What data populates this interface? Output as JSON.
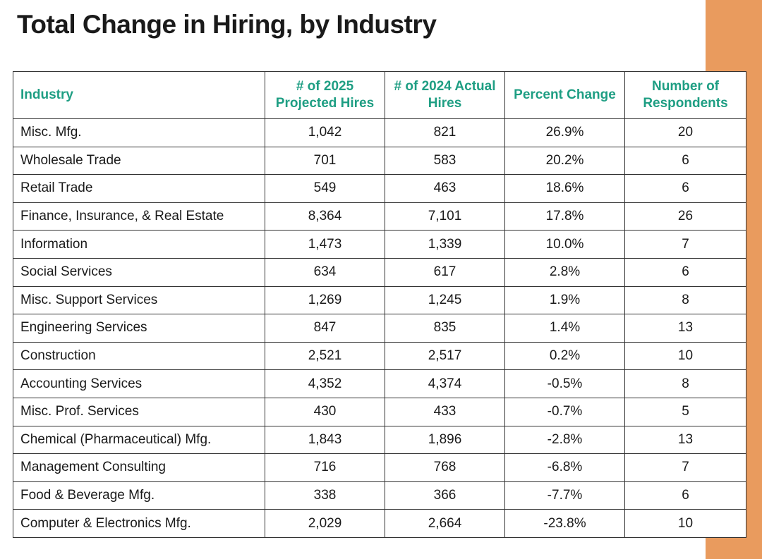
{
  "colors": {
    "accent": "#E99B5E",
    "header_text": "#1E9E83"
  },
  "page": {
    "title": "Total Change in Hiring, by Industry"
  },
  "chart_data": {
    "type": "table",
    "title": "Total Change in Hiring, by Industry",
    "columns": [
      "Industry",
      "# of 2025 Projected Hires",
      "# of 2024 Actual Hires",
      "Percent Change",
      "Number of Respondents"
    ],
    "rows": [
      [
        "Misc. Mfg.",
        "1,042",
        "821",
        "26.9%",
        "20"
      ],
      [
        "Wholesale Trade",
        "701",
        "583",
        "20.2%",
        "6"
      ],
      [
        "Retail Trade",
        "549",
        "463",
        "18.6%",
        "6"
      ],
      [
        "Finance, Insurance, & Real Estate",
        "8,364",
        "7,101",
        "17.8%",
        "26"
      ],
      [
        "Information",
        "1,473",
        "1,339",
        "10.0%",
        "7"
      ],
      [
        "Social Services",
        "634",
        "617",
        "2.8%",
        "6"
      ],
      [
        "Misc. Support Services",
        "1,269",
        "1,245",
        "1.9%",
        "8"
      ],
      [
        "Engineering Services",
        "847",
        "835",
        "1.4%",
        "13"
      ],
      [
        "Construction",
        "2,521",
        "2,517",
        "0.2%",
        "10"
      ],
      [
        "Accounting Services",
        "4,352",
        "4,374",
        "-0.5%",
        "8"
      ],
      [
        "Misc. Prof. Services",
        "430",
        "433",
        "-0.7%",
        "5"
      ],
      [
        "Chemical (Pharmaceutical) Mfg.",
        "1,843",
        "1,896",
        "-2.8%",
        "13"
      ],
      [
        "Management Consulting",
        "716",
        "768",
        "-6.8%",
        "7"
      ],
      [
        "Food & Beverage Mfg.",
        "338",
        "366",
        "-7.7%",
        "6"
      ],
      [
        "Computer & Electronics Mfg.",
        "2,029",
        "2,664",
        "-23.8%",
        "10"
      ]
    ]
  }
}
